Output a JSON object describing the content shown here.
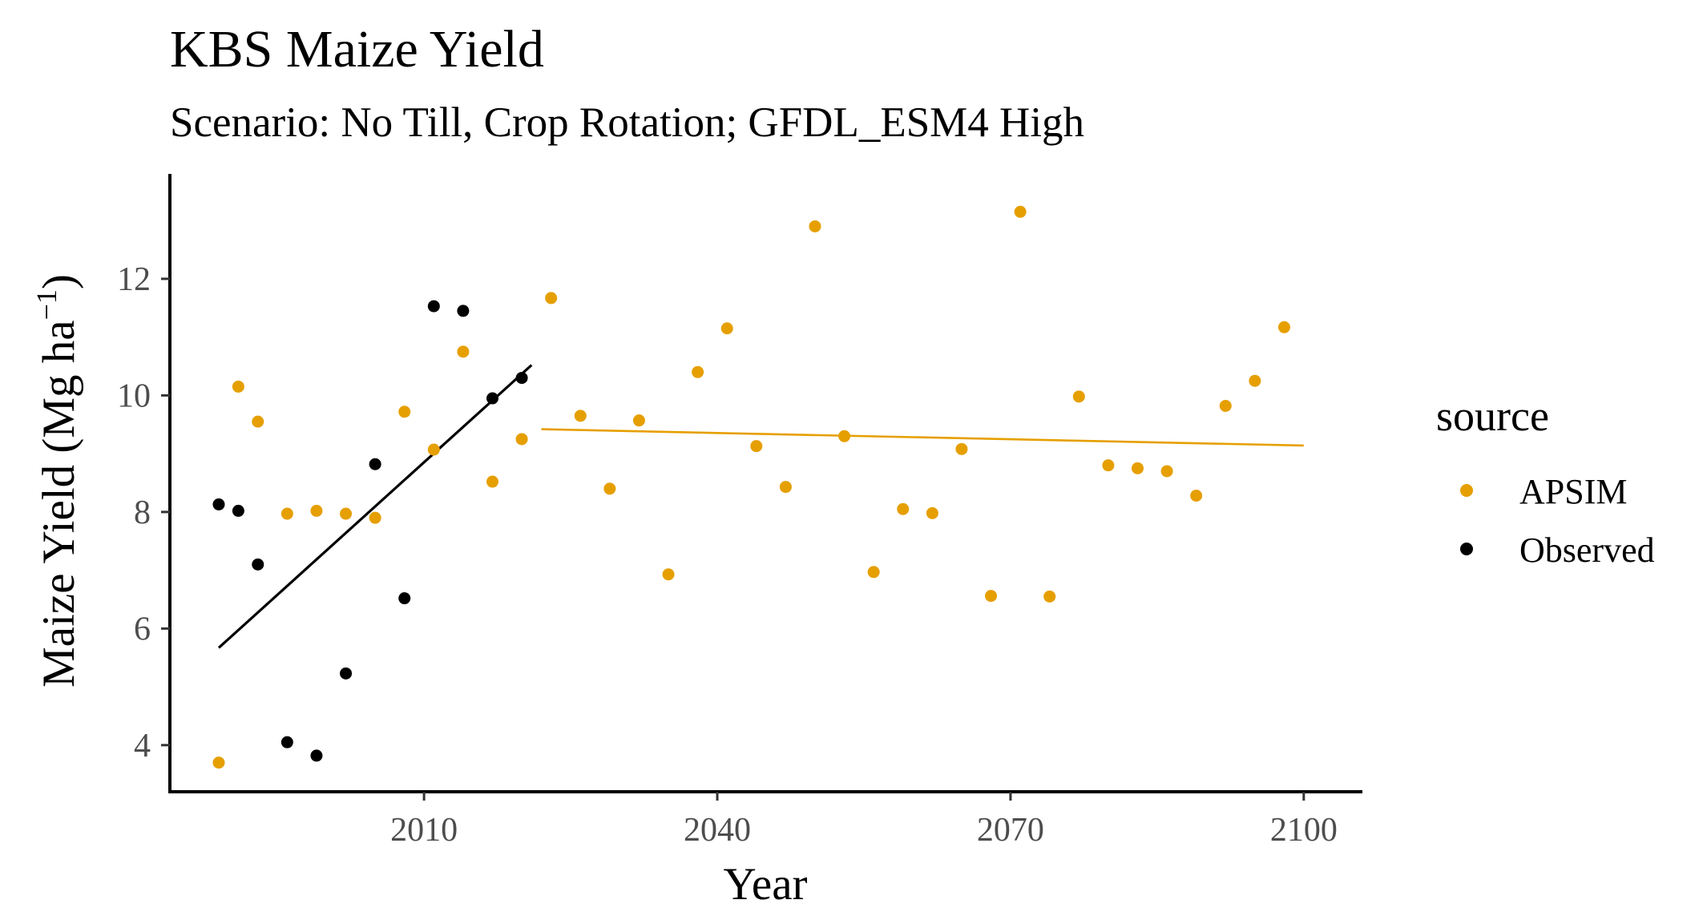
{
  "chart_data": {
    "type": "scatter",
    "title": "KBS Maize Yield",
    "subtitle": "Scenario: No Till, Crop Rotation; GFDL_ESM4 High",
    "xlabel": "Year",
    "ylabel": "Maize Yield (Mg ha",
    "ylabel_superscript": "−1",
    "ylabel_close": ")",
    "xlim": [
      1984,
      2106
    ],
    "ylim": [
      3.2,
      13.8
    ],
    "x_ticks": [
      2010,
      2040,
      2070,
      2100
    ],
    "y_ticks": [
      4,
      6,
      8,
      10,
      12
    ],
    "legend": {
      "title": "source",
      "position": "right",
      "entries": [
        {
          "label": "APSIM",
          "color": "#E69F00"
        },
        {
          "label": "Observed",
          "color": "#000000"
        }
      ]
    },
    "series": [
      {
        "name": "APSIM",
        "color": "#E69F00",
        "points": [
          [
            1989,
            3.7
          ],
          [
            1991,
            10.15
          ],
          [
            1993,
            9.55
          ],
          [
            1996,
            7.97
          ],
          [
            1999,
            8.02
          ],
          [
            2002,
            7.97
          ],
          [
            2005,
            7.9
          ],
          [
            2008,
            9.72
          ],
          [
            2011,
            9.07
          ],
          [
            2014,
            10.75
          ],
          [
            2017,
            8.52
          ],
          [
            2020,
            9.25
          ],
          [
            2023,
            11.67
          ],
          [
            2026,
            9.65
          ],
          [
            2029,
            8.4
          ],
          [
            2032,
            9.57
          ],
          [
            2035,
            6.93
          ],
          [
            2038,
            10.4
          ],
          [
            2041,
            11.15
          ],
          [
            2044,
            9.13
          ],
          [
            2047,
            8.43
          ],
          [
            2050,
            12.9
          ],
          [
            2053,
            9.3
          ],
          [
            2056,
            6.97
          ],
          [
            2059,
            8.05
          ],
          [
            2062,
            7.98
          ],
          [
            2065,
            9.08
          ],
          [
            2068,
            6.56
          ],
          [
            2071,
            13.15
          ],
          [
            2074,
            6.55
          ],
          [
            2077,
            9.98
          ],
          [
            2080,
            8.8
          ],
          [
            2083,
            8.75
          ],
          [
            2086,
            8.7
          ],
          [
            2089,
            8.28
          ],
          [
            2092,
            9.82
          ],
          [
            2095,
            10.25
          ],
          [
            2098,
            11.17
          ]
        ],
        "trend": {
          "from": [
            2022,
            9.42
          ],
          "to": [
            2100,
            9.14
          ]
        }
      },
      {
        "name": "Observed",
        "color": "#000000",
        "points": [
          [
            1989,
            8.13
          ],
          [
            1991,
            8.02
          ],
          [
            1993,
            7.1
          ],
          [
            1996,
            4.05
          ],
          [
            1999,
            3.82
          ],
          [
            2002,
            5.23
          ],
          [
            2005,
            8.82
          ],
          [
            2008,
            6.52
          ],
          [
            2011,
            11.53
          ],
          [
            2014,
            11.45
          ],
          [
            2017,
            9.95
          ],
          [
            2020,
            10.3
          ]
        ],
        "trend": {
          "from": [
            1989,
            5.67
          ],
          "to": [
            2021,
            10.52
          ]
        }
      }
    ]
  }
}
